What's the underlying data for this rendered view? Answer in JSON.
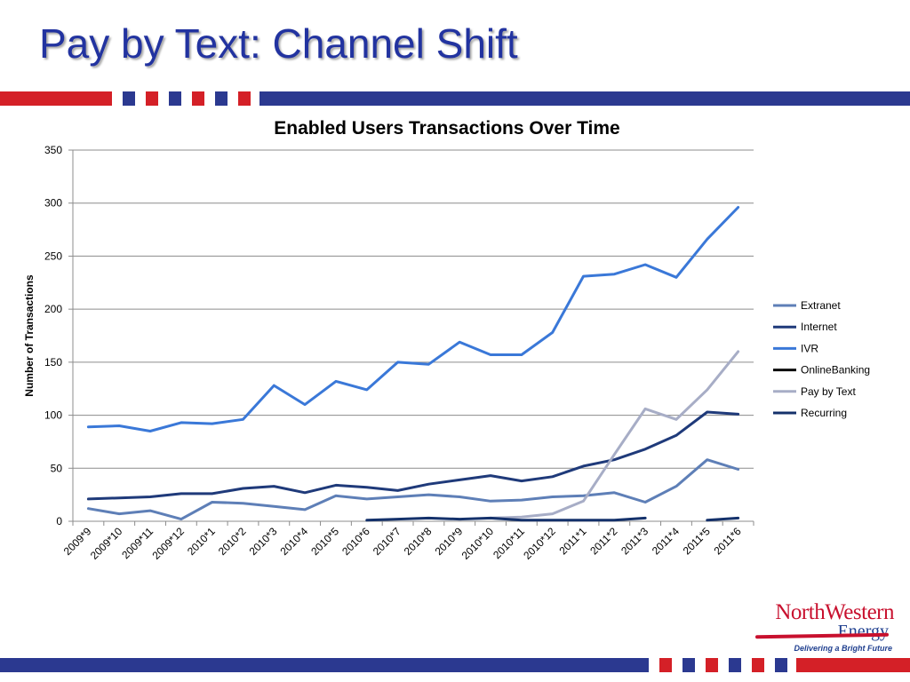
{
  "slide": {
    "title": "Pay by Text: Channel Shift"
  },
  "brand_colors": {
    "band_red": "#d42027",
    "band_blue": "#2b3990"
  },
  "logo": {
    "name_line": "NorthWestern",
    "energy_line": "Energy",
    "tagline": "Delivering a Bright Future"
  },
  "chart_data": {
    "type": "line",
    "title": "Enabled Users Transactions Over Time",
    "xlabel": "",
    "ylabel": "Number of Transactions",
    "ylim": [
      0,
      350
    ],
    "yticks": [
      0,
      50,
      100,
      150,
      200,
      250,
      300,
      350
    ],
    "grid": true,
    "legend_position": "right",
    "categories": [
      "2009*9",
      "2009*10",
      "2009*11",
      "2009*12",
      "2010*1",
      "2010*2",
      "2010*3",
      "2010*4",
      "2010*5",
      "2010*6",
      "2010*7",
      "2010*8",
      "2010*9",
      "2010*10",
      "2010*11",
      "2010*12",
      "2011*1",
      "2011*2",
      "2011*3",
      "2011*4",
      "2011*5",
      "2011*6"
    ],
    "series": [
      {
        "name": "Extranet",
        "color": "#5e7fb7",
        "values": [
          12,
          7,
          10,
          2,
          18,
          17,
          14,
          11,
          24,
          21,
          23,
          25,
          23,
          19,
          20,
          23,
          24,
          27,
          18,
          33,
          58,
          49
        ]
      },
      {
        "name": "Internet",
        "color": "#1f3a7a",
        "values": [
          21,
          22,
          23,
          26,
          26,
          31,
          33,
          27,
          34,
          32,
          29,
          35,
          39,
          43,
          38,
          42,
          52,
          58,
          68,
          81,
          103,
          101
        ]
      },
      {
        "name": "IVR",
        "color": "#3a78d8",
        "values": [
          89,
          90,
          85,
          93,
          92,
          96,
          128,
          110,
          132,
          124,
          150,
          148,
          169,
          157,
          157,
          178,
          231,
          233,
          242,
          230,
          266,
          296
        ]
      },
      {
        "name": "OnlineBanking",
        "color": "#0b0b0b",
        "values": [
          null,
          null,
          null,
          null,
          null,
          null,
          null,
          null,
          null,
          null,
          null,
          null,
          null,
          null,
          null,
          null,
          null,
          null,
          null,
          null,
          null,
          null
        ]
      },
      {
        "name": "Pay by Text",
        "color": "#a7adc6",
        "values": [
          null,
          null,
          null,
          null,
          null,
          null,
          null,
          null,
          null,
          null,
          null,
          null,
          null,
          3,
          4,
          7,
          19,
          63,
          106,
          96,
          124,
          160
        ]
      },
      {
        "name": "Recurring",
        "color": "#14316b",
        "values": [
          null,
          null,
          null,
          null,
          null,
          null,
          null,
          null,
          null,
          1,
          2,
          3,
          2,
          3,
          1,
          1,
          1,
          1,
          3,
          null,
          1,
          3
        ]
      }
    ]
  }
}
